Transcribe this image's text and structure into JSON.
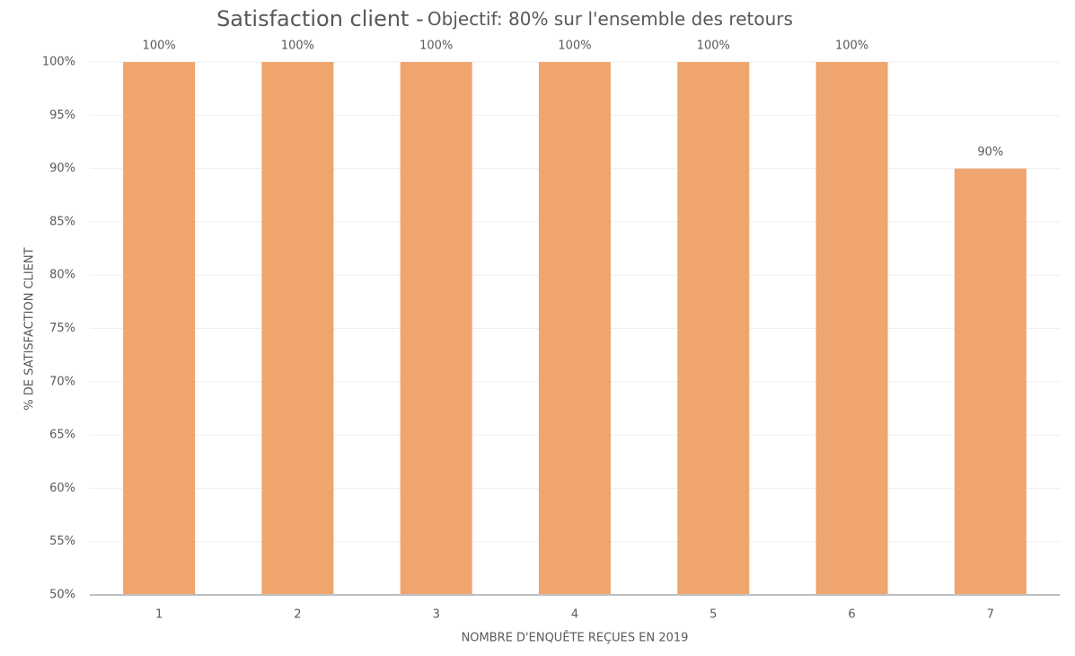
{
  "chart_data": {
    "type": "bar",
    "title": "Satisfaction client -",
    "subtitle": "Objectif: 80% sur l'ensemble des retours",
    "x_label": "NOMBRE D'ENQUÊTE REÇUES EN 2019",
    "y_label": "% DE SATISFACTION CLIENT",
    "categories": [
      "1",
      "2",
      "3",
      "4",
      "5",
      "6",
      "7"
    ],
    "values": [
      100,
      100,
      100,
      100,
      100,
      100,
      90
    ],
    "value_labels": [
      "100%",
      "100%",
      "100%",
      "100%",
      "100%",
      "100%",
      "90%"
    ],
    "color": "#f0a46e",
    "ylim": [
      50,
      100
    ],
    "yticks": [
      {
        "value": 50,
        "label": "50%"
      },
      {
        "value": 55,
        "label": "55%"
      },
      {
        "value": 60,
        "label": "60%"
      },
      {
        "value": 65,
        "label": "65%"
      },
      {
        "value": 70,
        "label": "70%"
      },
      {
        "value": 75,
        "label": "75%"
      },
      {
        "value": 80,
        "label": "80%"
      },
      {
        "value": 85,
        "label": "85%"
      },
      {
        "value": 90,
        "label": "90%"
      },
      {
        "value": 95,
        "label": "95%"
      },
      {
        "value": 100,
        "label": "100%"
      }
    ],
    "grid": true
  }
}
